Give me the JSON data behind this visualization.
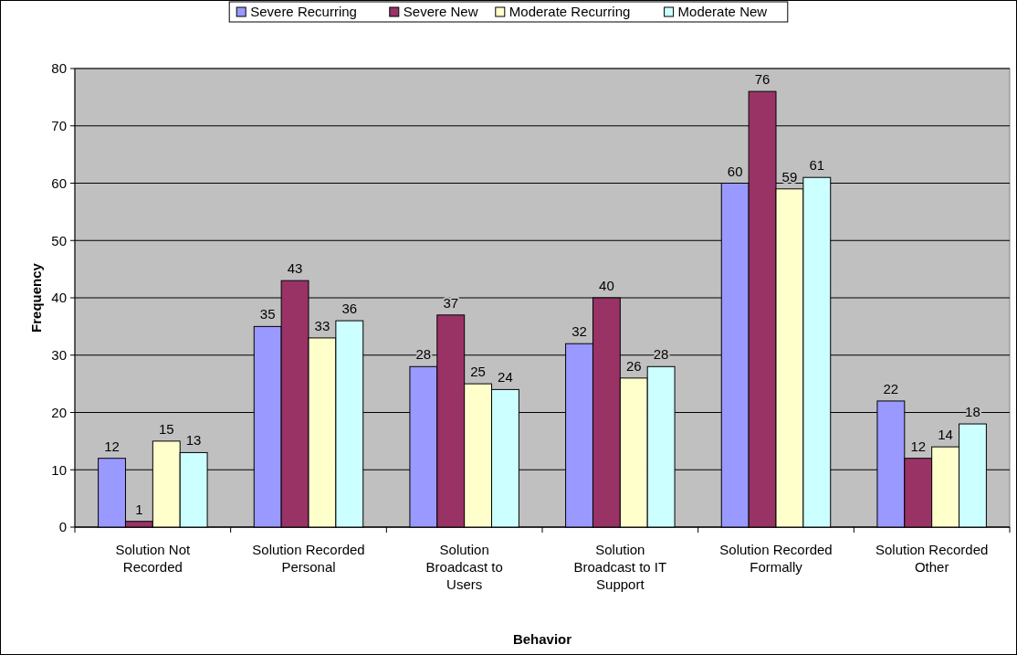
{
  "chart_data": {
    "type": "bar",
    "xlabel": "Behavior",
    "ylabel": "Frequency",
    "categories": [
      "Solution Not Recorded",
      "Solution Recorded Personal",
      "Solution Broadcast to Users",
      "Solution Broadcast to IT Support",
      "Solution Recorded Formally",
      "Solution Recorded Other"
    ],
    "series": [
      {
        "name": "Severe Recurring",
        "color": "#9999ff",
        "values": [
          12,
          35,
          28,
          32,
          60,
          22
        ]
      },
      {
        "name": "Severe New",
        "color": "#993366",
        "values": [
          1,
          43,
          37,
          40,
          76,
          12
        ]
      },
      {
        "name": "Moderate Recurring",
        "color": "#ffffcc",
        "values": [
          15,
          33,
          25,
          26,
          59,
          14
        ]
      },
      {
        "name": "Moderate New",
        "color": "#ccffff",
        "values": [
          13,
          36,
          24,
          28,
          61,
          18
        ]
      }
    ],
    "ylim": [
      0,
      80
    ],
    "yticks": [
      0,
      10,
      20,
      30,
      40,
      50,
      60,
      70,
      80
    ],
    "grid": "y",
    "legend": "top",
    "data_labels": true
  }
}
